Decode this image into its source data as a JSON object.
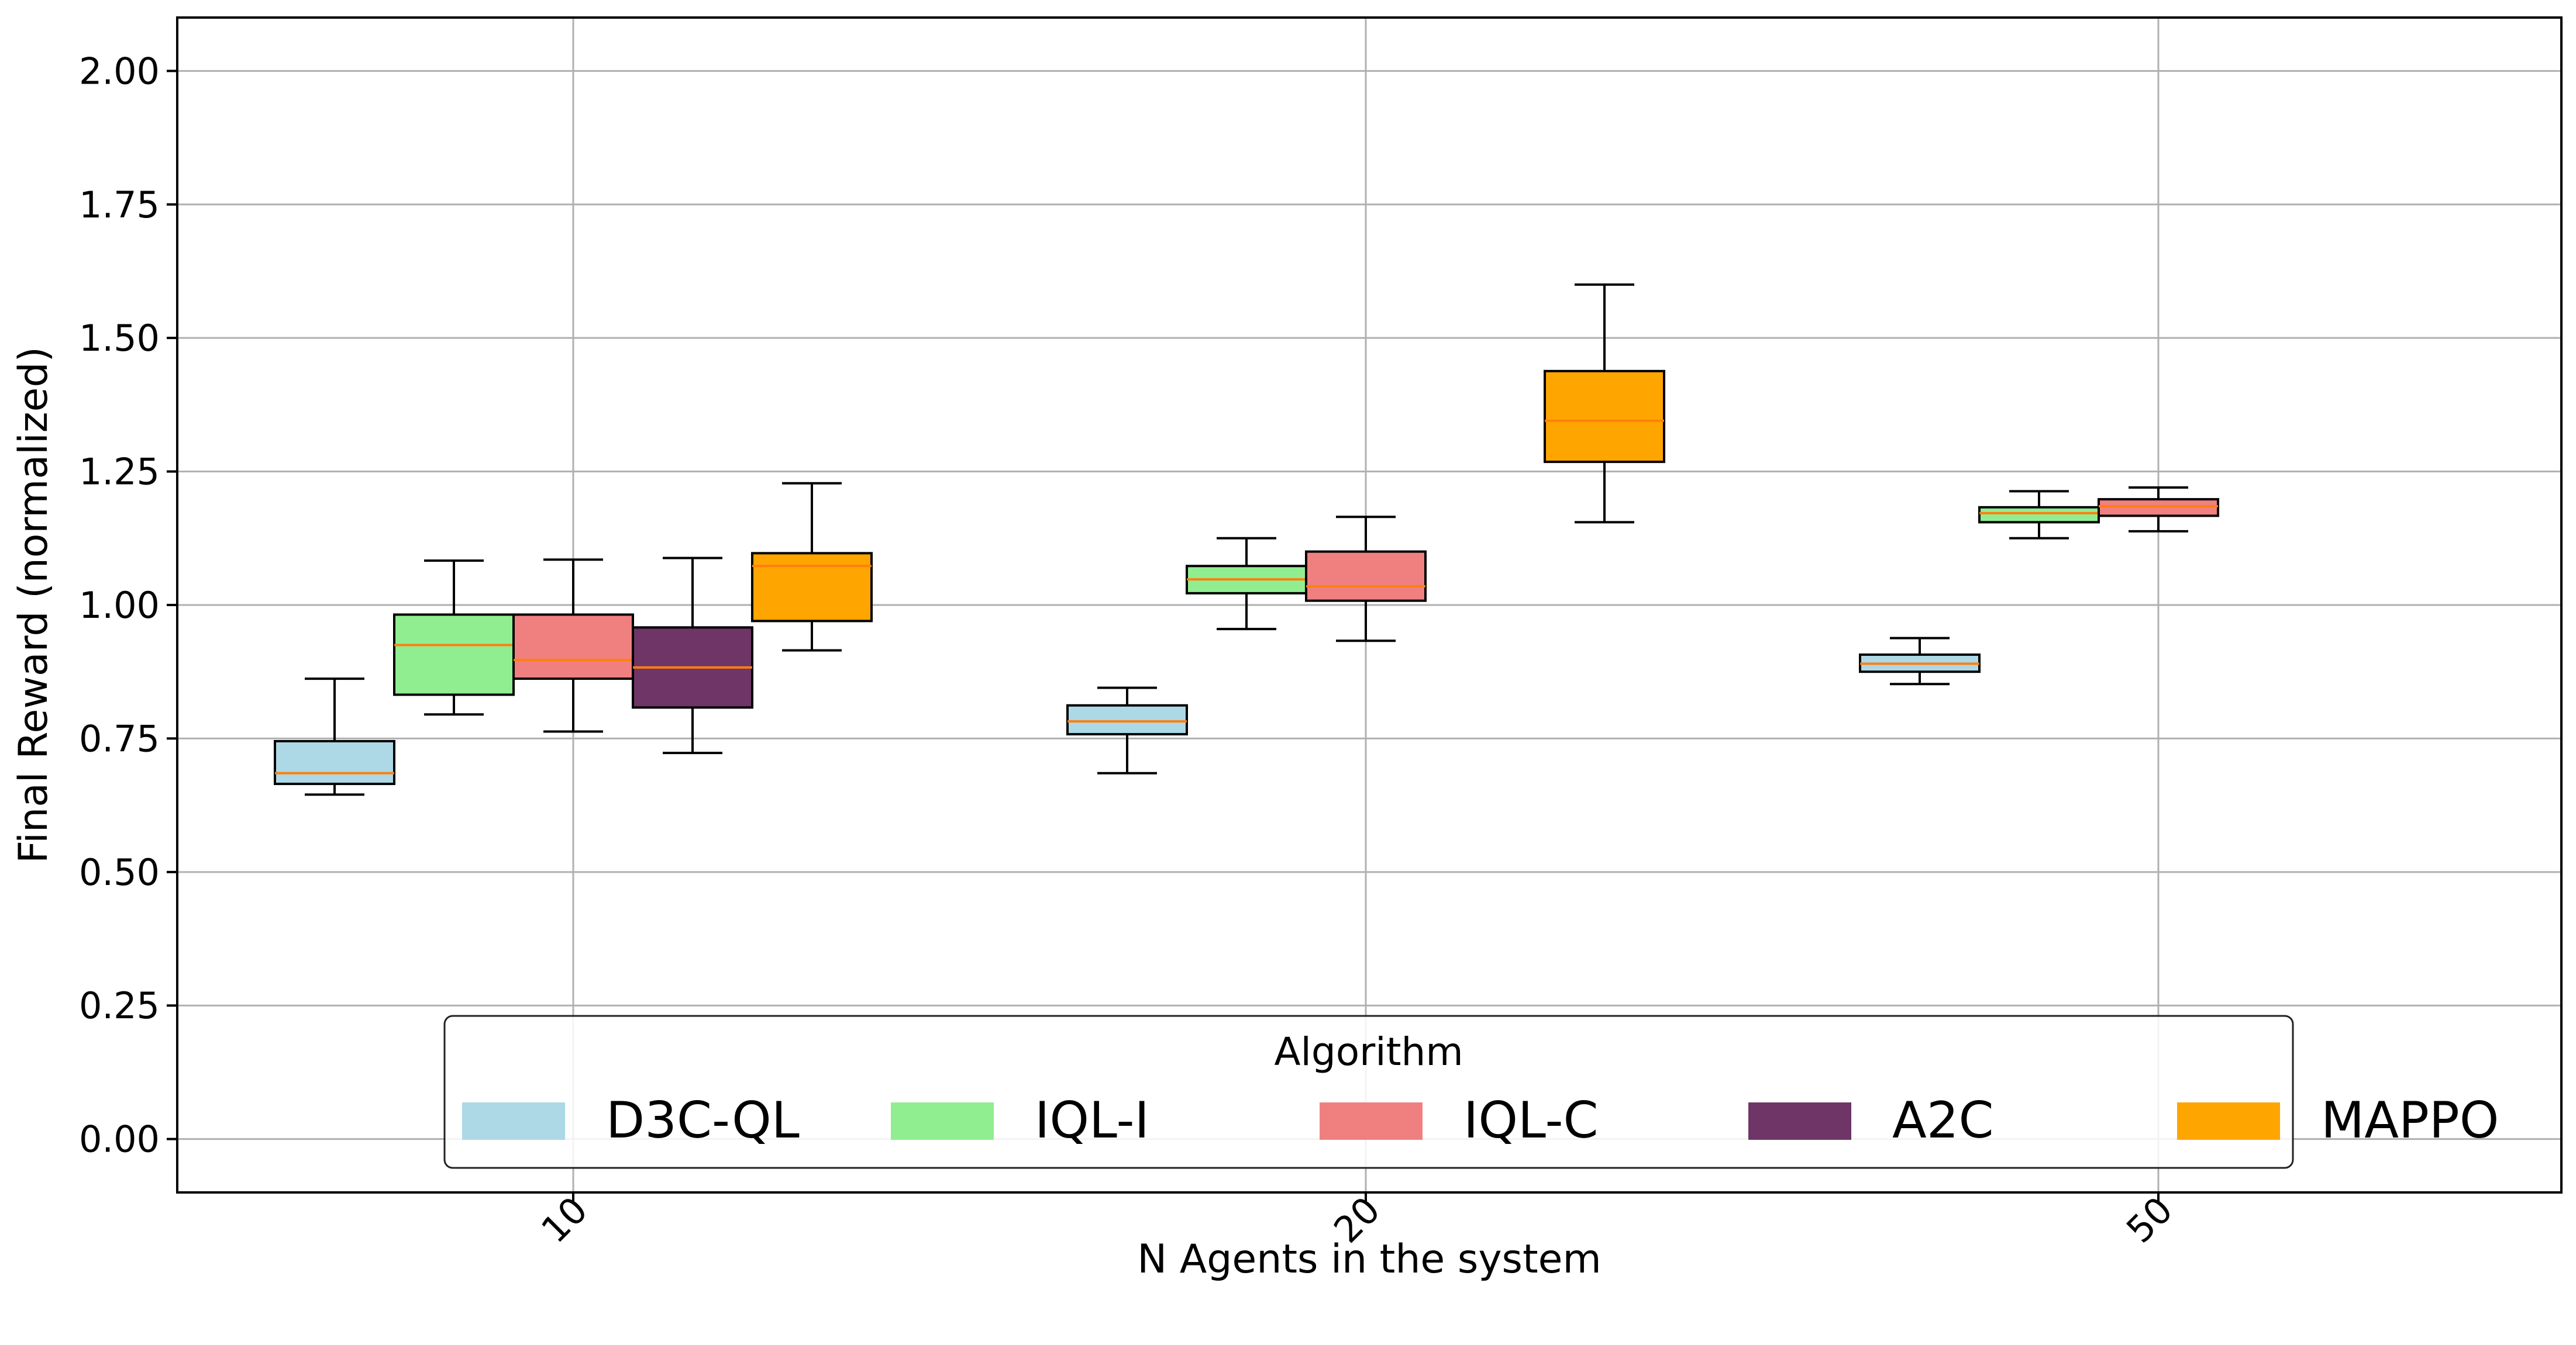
{
  "chart_data": {
    "type": "box",
    "title": "",
    "xlabel": "N Agents in the system",
    "ylabel": "Final Reward (normalized)",
    "ylim": [
      -0.1,
      2.1
    ],
    "yticks": [
      "0.00",
      "0.25",
      "0.50",
      "0.75",
      "1.00",
      "1.25",
      "1.50",
      "1.75",
      "2.00"
    ],
    "ytick_values": [
      0.0,
      0.25,
      0.5,
      0.75,
      1.0,
      1.25,
      1.5,
      1.75,
      2.0
    ],
    "categories": [
      "10",
      "20",
      "50"
    ],
    "grid": true,
    "legend": {
      "title": "Algorithm",
      "position": "bottom-center",
      "columns": 5
    },
    "series": [
      {
        "name": "D3C-QL",
        "color": "#add8e6",
        "boxes": [
          {
            "category": "10",
            "whisker_low": 0.645,
            "q1": 0.665,
            "median": 0.685,
            "q3": 0.745,
            "whisker_high": 0.862
          },
          {
            "category": "20",
            "whisker_low": 0.685,
            "q1": 0.758,
            "median": 0.782,
            "q3": 0.812,
            "whisker_high": 0.845
          },
          {
            "category": "50",
            "whisker_low": 0.852,
            "q1": 0.875,
            "median": 0.89,
            "q3": 0.907,
            "whisker_high": 0.938
          }
        ]
      },
      {
        "name": "IQL-I",
        "color": "#90ee90",
        "boxes": [
          {
            "category": "10",
            "whisker_low": 0.795,
            "q1": 0.832,
            "median": 0.925,
            "q3": 0.982,
            "whisker_high": 1.083
          },
          {
            "category": "20",
            "whisker_low": 0.955,
            "q1": 1.022,
            "median": 1.048,
            "q3": 1.073,
            "whisker_high": 1.125
          },
          {
            "category": "50",
            "whisker_low": 1.125,
            "q1": 1.155,
            "median": 1.172,
            "q3": 1.183,
            "whisker_high": 1.213
          }
        ]
      },
      {
        "name": "IQL-C",
        "color": "#f08080",
        "boxes": [
          {
            "category": "10",
            "whisker_low": 0.763,
            "q1": 0.862,
            "median": 0.897,
            "q3": 0.982,
            "whisker_high": 1.085
          },
          {
            "category": "20",
            "whisker_low": 0.933,
            "q1": 1.008,
            "median": 1.035,
            "q3": 1.1,
            "whisker_high": 1.165
          },
          {
            "category": "50",
            "whisker_low": 1.138,
            "q1": 1.167,
            "median": 1.185,
            "q3": 1.198,
            "whisker_high": 1.22
          }
        ]
      },
      {
        "name": "A2C",
        "color": "#6e3566",
        "boxes": [
          {
            "category": "10",
            "whisker_low": 0.723,
            "q1": 0.808,
            "median": 0.883,
            "q3": 0.958,
            "whisker_high": 1.088
          }
        ]
      },
      {
        "name": "MAPPO",
        "color": "#ffa500",
        "boxes": [
          {
            "category": "10",
            "whisker_low": 0.915,
            "q1": 0.97,
            "median": 1.073,
            "q3": 1.097,
            "whisker_high": 1.228
          },
          {
            "category": "20",
            "whisker_low": 1.155,
            "q1": 1.268,
            "median": 1.345,
            "q3": 1.438,
            "whisker_high": 1.6
          }
        ]
      }
    ],
    "median_color": "#ff7f0e",
    "grid_color": "#b0b0b0"
  }
}
